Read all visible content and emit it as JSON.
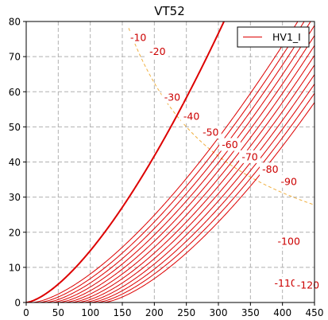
{
  "chart_data": {
    "type": "line",
    "title": "VT52",
    "xlabel": "",
    "ylabel": "",
    "xlim": [
      0,
      450
    ],
    "ylim": [
      0,
      80
    ],
    "x_ticks": [
      0,
      50,
      100,
      150,
      200,
      250,
      300,
      350,
      400,
      450
    ],
    "y_ticks": [
      0,
      10,
      20,
      30,
      40,
      50,
      60,
      70,
      80
    ],
    "grid": true,
    "legend": {
      "position": "top-right",
      "entries": [
        "HV1_I"
      ]
    },
    "curve_color": "#dd0000",
    "dissipation_color": "#f0b040",
    "series": [
      {
        "label": "",
        "cutoff": 0,
        "k": 0.01475,
        "bold": true
      },
      {
        "label": "-10",
        "cutoff": 10
      },
      {
        "label": "-20",
        "cutoff": 20
      },
      {
        "label": "-30",
        "cutoff": 30
      },
      {
        "label": "-40",
        "cutoff": 40
      },
      {
        "label": "-50",
        "cutoff": 50
      },
      {
        "label": "-60",
        "cutoff": 60
      },
      {
        "label": "-70",
        "cutoff": 70
      },
      {
        "label": "-80",
        "cutoff": 80
      },
      {
        "label": "-90",
        "cutoff": 90
      },
      {
        "label": "-100",
        "cutoff": 100
      },
      {
        "label": "-110",
        "cutoff": 110
      },
      {
        "label": "-120",
        "cutoff": 120
      }
    ],
    "curve_k": 0.0095,
    "label_points": [
      [
        -1,
        -1
      ],
      [
        175,
        75.5
      ],
      [
        205,
        71.5
      ],
      [
        228,
        58.5
      ],
      [
        258,
        53
      ],
      [
        288,
        48.5
      ],
      [
        318,
        45
      ],
      [
        349,
        41.5
      ],
      [
        381,
        38
      ],
      [
        410,
        34.5
      ],
      [
        410,
        17.5
      ],
      [
        405,
        5.5
      ],
      [
        440,
        5
      ]
    ],
    "dissipation_curve": {
      "power": 12500,
      "x_from": 160,
      "x_to": 450
    }
  }
}
